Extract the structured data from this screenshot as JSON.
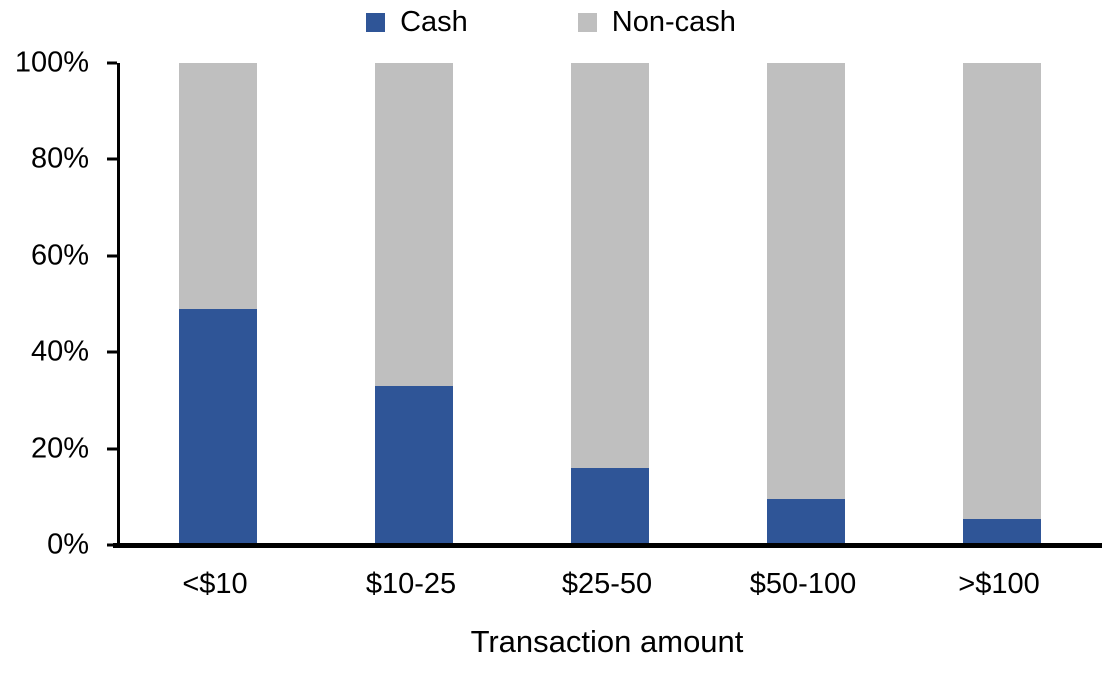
{
  "chart_data": {
    "type": "bar",
    "stacked": true,
    "normalized_to_100": true,
    "title": "",
    "xlabel": "Transaction amount",
    "ylabel": "",
    "categories": [
      "<$10",
      "$10-25",
      "$25-50",
      "$50-100",
      ">$100"
    ],
    "series": [
      {
        "name": "Cash",
        "color": "#2F5597",
        "values": [
          49,
          33,
          16,
          9.5,
          5.5
        ]
      },
      {
        "name": "Non-cash",
        "color": "#BFBFBF",
        "values": [
          51,
          67,
          84,
          90.5,
          94.5
        ]
      }
    ],
    "ylim": [
      0,
      100
    ],
    "yticks": [
      "0%",
      "20%",
      "40%",
      "60%",
      "80%",
      "100%"
    ],
    "grid": false,
    "legend_position": "top-center",
    "axis_color": "#000000"
  }
}
